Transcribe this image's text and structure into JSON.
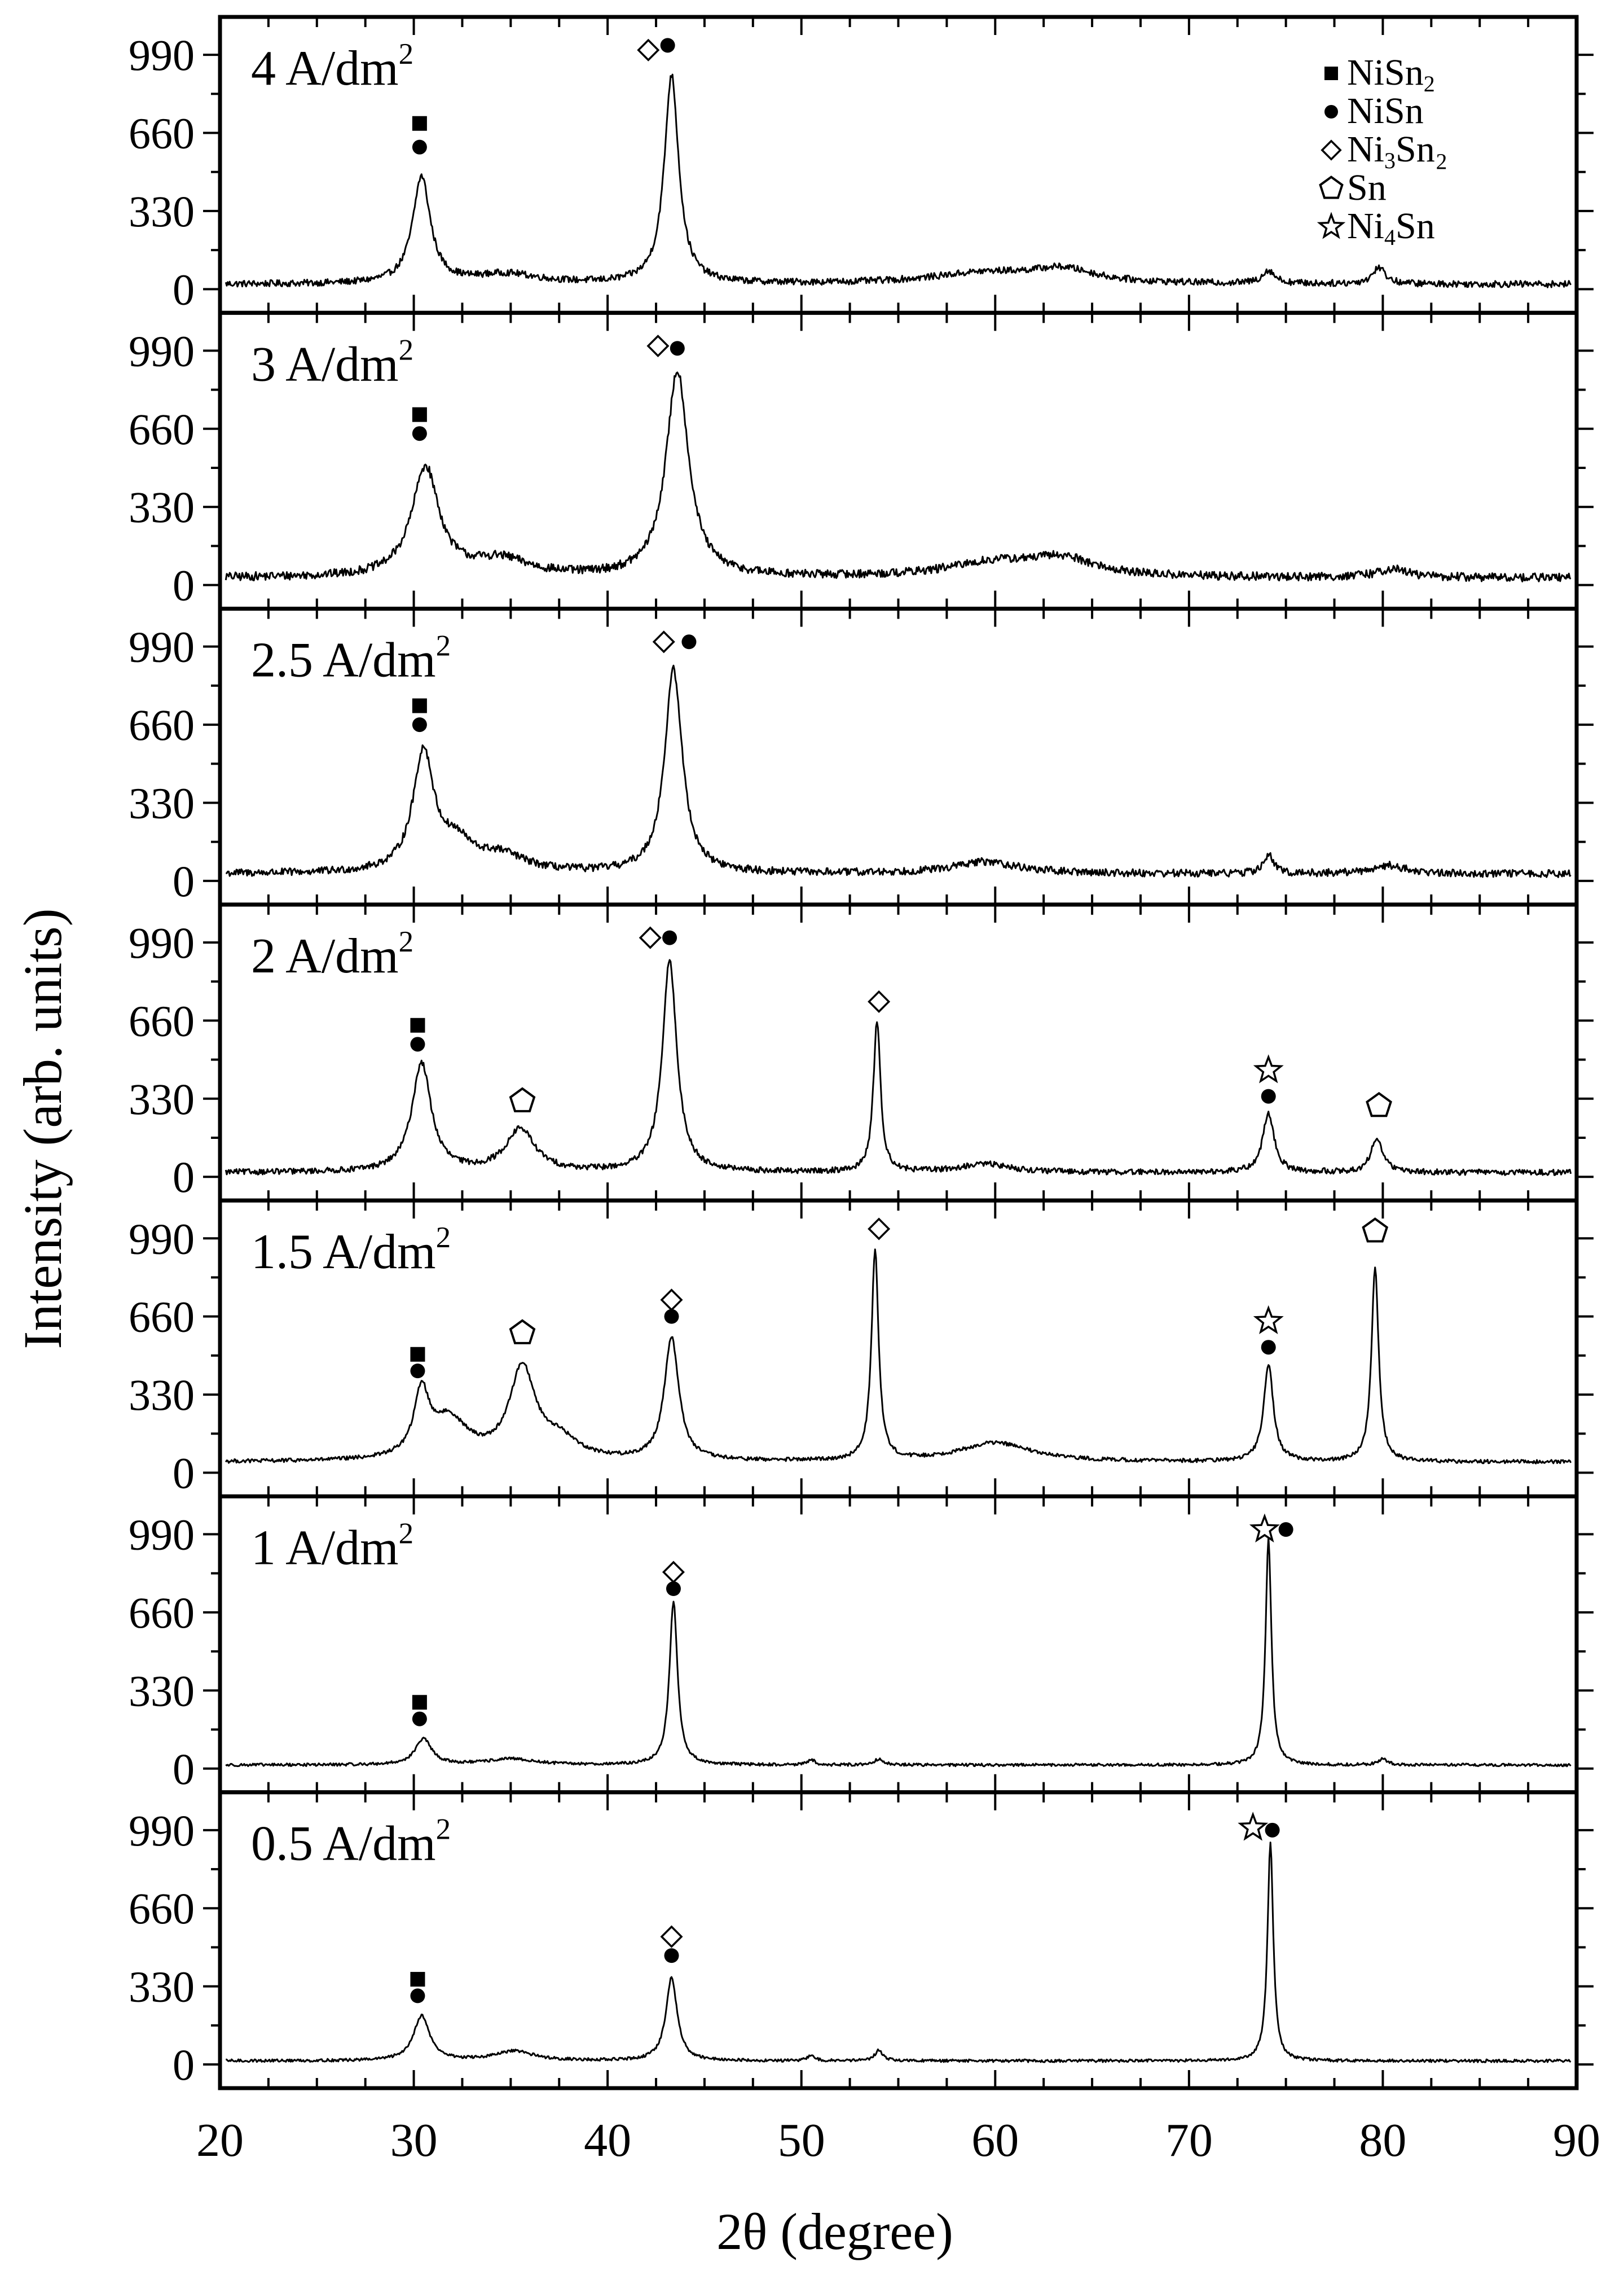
{
  "chart_data": {
    "type": "line",
    "xlabel": "2θ (degree)",
    "ylabel": "Intensity (arb. units)",
    "xlim": [
      20,
      90
    ],
    "xticks": [
      20,
      30,
      40,
      50,
      60,
      70,
      80,
      90
    ],
    "ylim": [
      -100,
      1150
    ],
    "yticks": [
      0,
      330,
      660,
      990
    ],
    "legend": {
      "placement": "top-right of top panel",
      "entries": [
        {
          "symbol": "square",
          "label": "NiSn₂"
        },
        {
          "symbol": "circle",
          "label": "NiSn"
        },
        {
          "symbol": "diamond",
          "label": "Ni₃Sn₂"
        },
        {
          "symbol": "pentagon",
          "label": "Sn"
        },
        {
          "symbol": "star",
          "label": "Ni₄Sn"
        }
      ]
    },
    "panels": [
      {
        "label": "4 A/dm²",
        "baseline": 20,
        "noise": 14,
        "peaks": [
          [
            30.4,
            450,
            0.55
          ],
          [
            34.8,
            40,
            2.0
          ],
          [
            43.3,
            880,
            0.45
          ],
          [
            59.5,
            45,
            3.5
          ],
          [
            63.5,
            55,
            2.0
          ],
          [
            74.1,
            55,
            0.4
          ],
          [
            79.8,
            70,
            0.4
          ]
        ],
        "markers": [
          {
            "symbol": "square",
            "x": 30.3,
            "y": 700
          },
          {
            "symbol": "circle",
            "x": 30.3,
            "y": 600
          },
          {
            "symbol": "diamond",
            "x": 42.1,
            "y": 1010
          },
          {
            "symbol": "circle",
            "x": 43.1,
            "y": 1030
          }
        ]
      },
      {
        "label": "3 A/dm²",
        "baseline": 30,
        "noise": 18,
        "peaks": [
          [
            30.6,
            460,
            0.85
          ],
          [
            34.5,
            70,
            1.8
          ],
          [
            43.6,
            870,
            0.7
          ],
          [
            60,
            60,
            3.0
          ],
          [
            63.5,
            70,
            2.0
          ],
          [
            80.5,
            35,
            1.0
          ]
        ],
        "markers": [
          {
            "symbol": "square",
            "x": 30.3,
            "y": 720
          },
          {
            "symbol": "circle",
            "x": 30.3,
            "y": 640
          },
          {
            "symbol": "diamond",
            "x": 42.6,
            "y": 1010
          },
          {
            "symbol": "circle",
            "x": 43.6,
            "y": 1000
          }
        ]
      },
      {
        "label": "2.5 A/dm²",
        "baseline": 30,
        "noise": 16,
        "peaks": [
          [
            30.5,
            500,
            0.65
          ],
          [
            32.2,
            110,
            1.0
          ],
          [
            34.5,
            70,
            1.5
          ],
          [
            43.4,
            860,
            0.55
          ],
          [
            59.5,
            50,
            2.0
          ],
          [
            74.1,
            80,
            0.3
          ],
          [
            80.3,
            35,
            1.0
          ]
        ],
        "markers": [
          {
            "symbol": "square",
            "x": 30.3,
            "y": 740
          },
          {
            "symbol": "circle",
            "x": 30.3,
            "y": 660
          },
          {
            "symbol": "diamond",
            "x": 42.9,
            "y": 1010
          },
          {
            "symbol": "circle",
            "x": 44.2,
            "y": 1010
          }
        ]
      },
      {
        "label": "2 A/dm²",
        "baseline": 18,
        "noise": 12,
        "peaks": [
          [
            30.4,
            460,
            0.6
          ],
          [
            35.5,
            180,
            0.9
          ],
          [
            43.2,
            890,
            0.45
          ],
          [
            53.9,
            640,
            0.22
          ],
          [
            59.5,
            35,
            1.5
          ],
          [
            74.1,
            250,
            0.35
          ],
          [
            79.7,
            150,
            0.35
          ]
        ],
        "markers": [
          {
            "symbol": "square",
            "x": 30.2,
            "y": 640
          },
          {
            "symbol": "circle",
            "x": 30.2,
            "y": 560
          },
          {
            "symbol": "pentagon",
            "x": 35.6,
            "y": 320
          },
          {
            "symbol": "diamond",
            "x": 42.2,
            "y": 1010
          },
          {
            "symbol": "circle",
            "x": 43.2,
            "y": 1010
          },
          {
            "symbol": "diamond",
            "x": 54.0,
            "y": 740
          },
          {
            "symbol": "star",
            "x": 74.1,
            "y": 450
          },
          {
            "symbol": "circle",
            "x": 74.1,
            "y": 340
          },
          {
            "symbol": "pentagon",
            "x": 79.8,
            "y": 300
          }
        ]
      },
      {
        "label": "1.5 A/dm²",
        "baseline": 45,
        "noise": 8,
        "peaks": [
          [
            30.4,
            260,
            0.45
          ],
          [
            31.8,
            170,
            1.2
          ],
          [
            35.6,
            380,
            0.8
          ],
          [
            37.5,
            80,
            1.2
          ],
          [
            43.3,
            520,
            0.45
          ],
          [
            53.8,
            890,
            0.22
          ],
          [
            60,
            80,
            2.2
          ],
          [
            74.1,
            410,
            0.3
          ],
          [
            79.6,
            820,
            0.22
          ]
        ],
        "markers": [
          {
            "symbol": "square",
            "x": 30.2,
            "y": 500
          },
          {
            "symbol": "circle",
            "x": 30.2,
            "y": 430
          },
          {
            "symbol": "pentagon",
            "x": 35.6,
            "y": 590
          },
          {
            "symbol": "diamond",
            "x": 43.3,
            "y": 730
          },
          {
            "symbol": "circle",
            "x": 43.3,
            "y": 660
          },
          {
            "symbol": "diamond",
            "x": 54.0,
            "y": 1030
          },
          {
            "symbol": "star",
            "x": 74.1,
            "y": 640
          },
          {
            "symbol": "circle",
            "x": 74.1,
            "y": 530
          },
          {
            "symbol": "pentagon",
            "x": 79.6,
            "y": 1020
          }
        ]
      },
      {
        "label": "1 A/dm²",
        "baseline": 15,
        "noise": 6,
        "peaks": [
          [
            30.5,
            110,
            0.5
          ],
          [
            35,
            25,
            1.5
          ],
          [
            43.4,
            690,
            0.25
          ],
          [
            50.5,
            25,
            0.2
          ],
          [
            54,
            25,
            0.3
          ],
          [
            74.1,
            960,
            0.18
          ],
          [
            80,
            25,
            0.3
          ]
        ],
        "markers": [
          {
            "symbol": "square",
            "x": 30.3,
            "y": 280
          },
          {
            "symbol": "circle",
            "x": 30.3,
            "y": 210
          },
          {
            "symbol": "diamond",
            "x": 43.4,
            "y": 830
          },
          {
            "symbol": "circle",
            "x": 43.4,
            "y": 760
          },
          {
            "symbol": "star",
            "x": 73.9,
            "y": 1010
          },
          {
            "symbol": "circle",
            "x": 75.0,
            "y": 1010
          }
        ]
      },
      {
        "label": "0.5 A/dm²",
        "baseline": 15,
        "noise": 6,
        "peaks": [
          [
            30.4,
            190,
            0.5
          ],
          [
            35.2,
            40,
            1.2
          ],
          [
            43.3,
            350,
            0.35
          ],
          [
            50.5,
            25,
            0.2
          ],
          [
            54,
            45,
            0.25
          ],
          [
            74.2,
            920,
            0.18
          ]
        ],
        "markers": [
          {
            "symbol": "square",
            "x": 30.2,
            "y": 360
          },
          {
            "symbol": "circle",
            "x": 30.2,
            "y": 290
          },
          {
            "symbol": "diamond",
            "x": 43.3,
            "y": 540
          },
          {
            "symbol": "circle",
            "x": 43.3,
            "y": 460
          },
          {
            "symbol": "star",
            "x": 73.3,
            "y": 1000
          },
          {
            "symbol": "circle",
            "x": 74.3,
            "y": 990
          }
        ]
      }
    ]
  }
}
